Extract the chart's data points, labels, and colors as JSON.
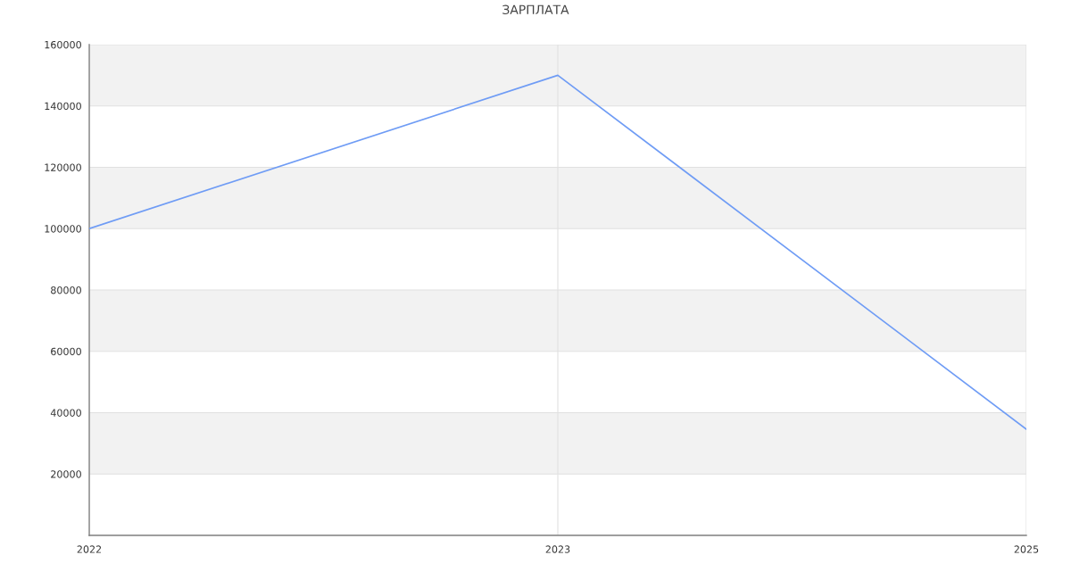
{
  "chart_data": {
    "type": "line",
    "title": "ЗАРПЛАТА",
    "categories": [
      "2022",
      "2023",
      "2025"
    ],
    "series": [
      {
        "color": "#6f9cf5",
        "values": [
          100000,
          150000,
          34600
        ]
      }
    ],
    "ylim": [
      0,
      160000
    ],
    "yticks": [
      {
        "value": 0,
        "label": null
      },
      20000,
      40000,
      60000,
      80000,
      100000,
      120000,
      140000,
      160000
    ],
    "bands": [
      {
        "axis": "y",
        "from": 20000,
        "to": 40000,
        "color": "#f2f2f2"
      },
      {
        "axis": "y",
        "from": 60000,
        "to": 80000,
        "color": "#f2f2f2"
      },
      {
        "axis": "y",
        "from": 100000,
        "to": 120000,
        "color": "#f2f2f2"
      },
      {
        "axis": "y",
        "from": 140000,
        "to": 160000,
        "color": "#f2f2f2"
      }
    ],
    "grid": true
  }
}
